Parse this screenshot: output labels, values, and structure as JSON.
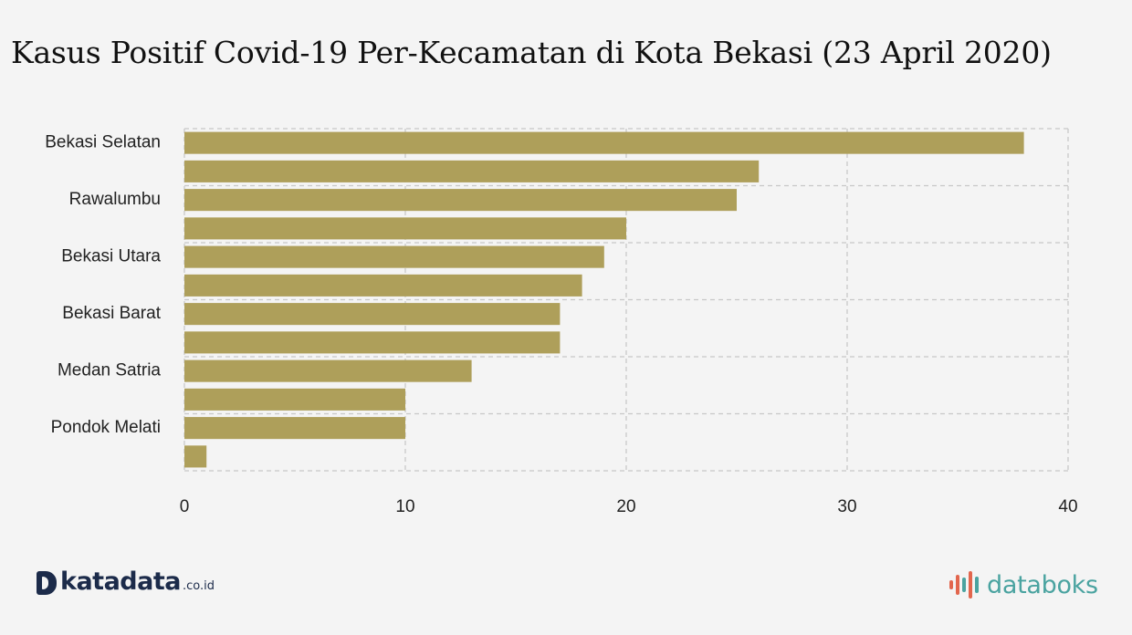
{
  "title": "Kasus Positif Covid-19 Per-Kecamatan di Kota Bekasi (23 April 2020)",
  "chart_data": {
    "type": "bar",
    "orientation": "horizontal",
    "categories": [
      "Bekasi Selatan",
      "",
      "Rawalumbu",
      "",
      "Bekasi Utara",
      "",
      "Bekasi Barat",
      "",
      "Medan Satria",
      "",
      "Pondok Melati",
      ""
    ],
    "values": [
      38,
      26,
      25,
      20,
      19,
      18,
      17,
      17,
      13,
      10,
      10,
      1
    ],
    "xlim": [
      0,
      40
    ],
    "xticks": [
      0,
      10,
      20,
      30,
      40
    ],
    "xtick_labels": [
      "0",
      "10",
      "20",
      "30",
      "40"
    ],
    "grid": true,
    "bar_color": "#ae9f5a",
    "grid_color": "#c8c8c8"
  },
  "branding": {
    "left_name": "katadata",
    "left_suffix": ".co.id",
    "right_name": "databoks",
    "left_color": "#1c2b4a",
    "right_color": "#4aa3a0"
  }
}
